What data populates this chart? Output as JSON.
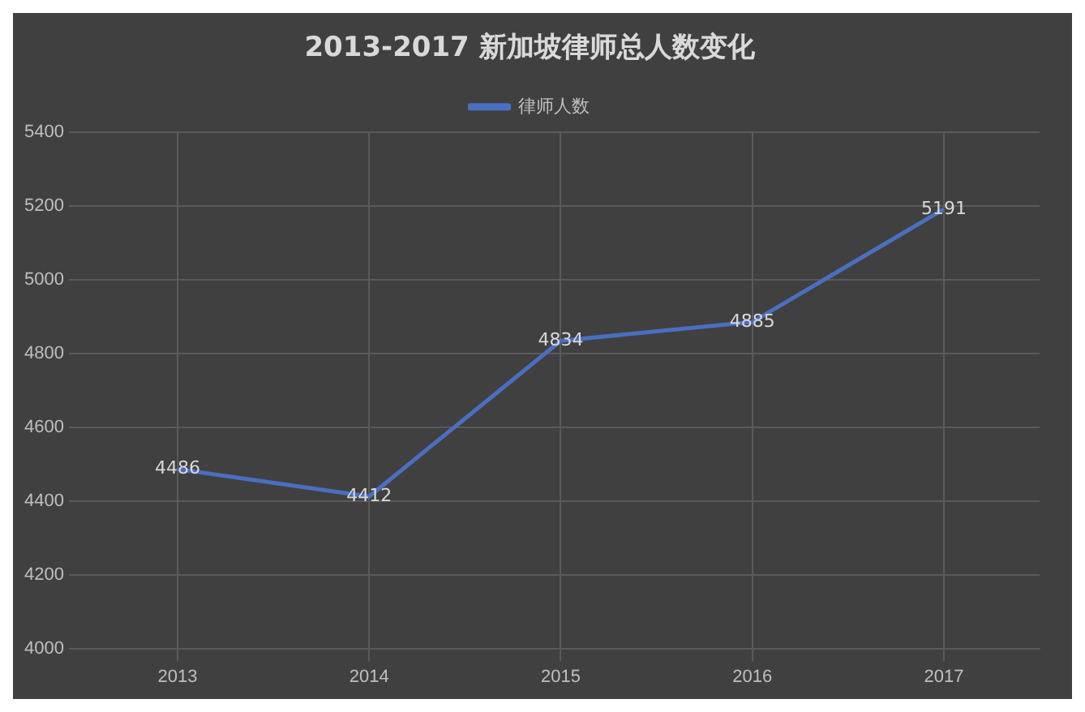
{
  "chart_data": {
    "type": "line",
    "title": "2013-2017 新加坡律师总人数变化",
    "categories": [
      "2013",
      "2014",
      "2015",
      "2016",
      "2017"
    ],
    "series": [
      {
        "name": "律师人数",
        "color": "#4a6fc0",
        "values": [
          4486,
          4412,
          4834,
          4885,
          5191
        ]
      }
    ],
    "ylim": [
      4000,
      5400
    ],
    "yticks": [
      4000,
      4200,
      4400,
      4600,
      4800,
      5000,
      5200,
      5400
    ],
    "grid": true,
    "legend": "top",
    "data_labels": true,
    "marker": "none",
    "line_style": "solid"
  }
}
